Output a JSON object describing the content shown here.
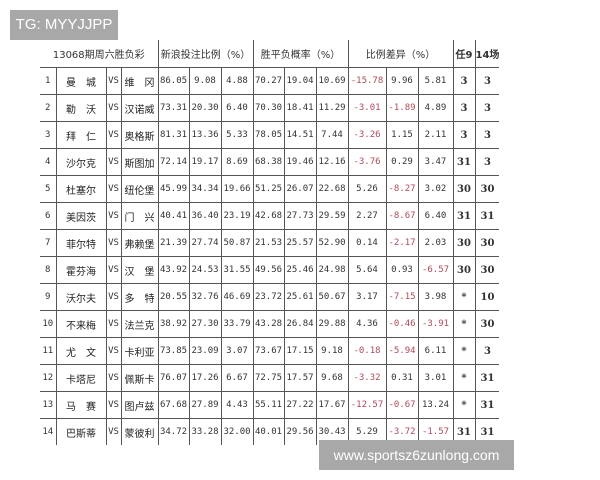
{
  "watermark_top": "TG: MYYJJPP",
  "watermark_bottom": "www.sportsz6zunlong.com",
  "header": {
    "title": "13068期周六胜负彩",
    "sina": "新浪投注比例（%）",
    "prob": "胜平负概率（%）",
    "diff": "比例差异（%）",
    "ren9": "任9",
    "c14": "14场"
  },
  "negative_color": "#b04a5a",
  "rows": [
    {
      "n": "1",
      "home": "曼　城",
      "vs": "VS",
      "away": "维　冈",
      "sina": [
        "86.05",
        "9.08",
        "4.88"
      ],
      "prob": [
        "70.27",
        "19.04",
        "10.69"
      ],
      "diff": [
        "-15.78",
        "9.96",
        "5.81"
      ],
      "ren9": "3",
      "c14": "3"
    },
    {
      "n": "2",
      "home": "勒　沃",
      "vs": "VS",
      "away": "汉诺威",
      "sina": [
        "73.31",
        "20.30",
        "6.40"
      ],
      "prob": [
        "70.30",
        "18.41",
        "11.29"
      ],
      "diff": [
        "-3.01",
        "-1.89",
        "4.89"
      ],
      "ren9": "3",
      "c14": "3"
    },
    {
      "n": "3",
      "home": "拜　仁",
      "vs": "VS",
      "away": "奥格斯",
      "sina": [
        "81.31",
        "13.36",
        "5.33"
      ],
      "prob": [
        "78.05",
        "14.51",
        "7.44"
      ],
      "diff": [
        "-3.26",
        "1.15",
        "2.11"
      ],
      "ren9": "3",
      "c14": "3"
    },
    {
      "n": "4",
      "home": "沙尔克",
      "vs": "VS",
      "away": "斯图加",
      "sina": [
        "72.14",
        "19.17",
        "8.69"
      ],
      "prob": [
        "68.38",
        "19.46",
        "12.16"
      ],
      "diff": [
        "-3.76",
        "0.29",
        "3.47"
      ],
      "ren9": "31",
      "c14": "3"
    },
    {
      "n": "5",
      "home": "杜塞尔",
      "vs": "VS",
      "away": "纽伦堡",
      "sina": [
        "45.99",
        "34.34",
        "19.66"
      ],
      "prob": [
        "51.25",
        "26.07",
        "22.68"
      ],
      "diff": [
        "5.26",
        "-8.27",
        "3.02"
      ],
      "ren9": "30",
      "c14": "30"
    },
    {
      "n": "6",
      "home": "美因茨",
      "vs": "VS",
      "away": "门　兴",
      "sina": [
        "40.41",
        "36.40",
        "23.19"
      ],
      "prob": [
        "42.68",
        "27.73",
        "29.59"
      ],
      "diff": [
        "2.27",
        "-8.67",
        "6.40"
      ],
      "ren9": "31",
      "c14": "31"
    },
    {
      "n": "7",
      "home": "菲尔特",
      "vs": "VS",
      "away": "弗赖堡",
      "sina": [
        "21.39",
        "27.74",
        "50.87"
      ],
      "prob": [
        "21.53",
        "25.57",
        "52.90"
      ],
      "diff": [
        "0.14",
        "-2.17",
        "2.03"
      ],
      "ren9": "30",
      "c14": "30"
    },
    {
      "n": "8",
      "home": "霍芬海",
      "vs": "VS",
      "away": "汉　堡",
      "sina": [
        "43.92",
        "24.53",
        "31.55"
      ],
      "prob": [
        "49.56",
        "25.46",
        "24.98"
      ],
      "diff": [
        "5.64",
        "0.93",
        "-6.57"
      ],
      "ren9": "30",
      "c14": "30"
    },
    {
      "n": "9",
      "home": "沃尔夫",
      "vs": "VS",
      "away": "多　特",
      "sina": [
        "20.55",
        "32.76",
        "46.69"
      ],
      "prob": [
        "23.72",
        "25.61",
        "50.67"
      ],
      "diff": [
        "3.17",
        "-7.15",
        "3.98"
      ],
      "ren9": "*",
      "c14": "10"
    },
    {
      "n": "10",
      "home": "不来梅",
      "vs": "VS",
      "away": "法兰克",
      "sina": [
        "38.92",
        "27.30",
        "33.79"
      ],
      "prob": [
        "43.28",
        "26.84",
        "29.88"
      ],
      "diff": [
        "4.36",
        "-0.46",
        "-3.91"
      ],
      "ren9": "*",
      "c14": "30"
    },
    {
      "n": "11",
      "home": "尤　文",
      "vs": "VS",
      "away": "卡利亚",
      "sina": [
        "73.85",
        "23.09",
        "3.07"
      ],
      "prob": [
        "73.67",
        "17.15",
        "9.18"
      ],
      "diff": [
        "-0.18",
        "-5.94",
        "6.11"
      ],
      "ren9": "*",
      "c14": "3"
    },
    {
      "n": "12",
      "home": "卡塔尼",
      "vs": "VS",
      "away": "佩斯卡",
      "sina": [
        "76.07",
        "17.26",
        "6.67"
      ],
      "prob": [
        "72.75",
        "17.57",
        "9.68"
      ],
      "diff": [
        "-3.32",
        "0.31",
        "3.01"
      ],
      "ren9": "*",
      "c14": "31"
    },
    {
      "n": "13",
      "home": "马　赛",
      "vs": "VS",
      "away": "图卢兹",
      "sina": [
        "67.68",
        "27.89",
        "4.43"
      ],
      "prob": [
        "55.11",
        "27.22",
        "17.67"
      ],
      "diff": [
        "-12.57",
        "-0.67",
        "13.24"
      ],
      "ren9": "*",
      "c14": "31"
    },
    {
      "n": "14",
      "home": "巴斯蒂",
      "vs": "VS",
      "away": "蒙彼利",
      "sina": [
        "34.72",
        "33.28",
        "32.00"
      ],
      "prob": [
        "40.01",
        "29.56",
        "30.43"
      ],
      "diff": [
        "5.29",
        "-3.72",
        "-1.57"
      ],
      "ren9": "31",
      "c14": "31"
    }
  ]
}
